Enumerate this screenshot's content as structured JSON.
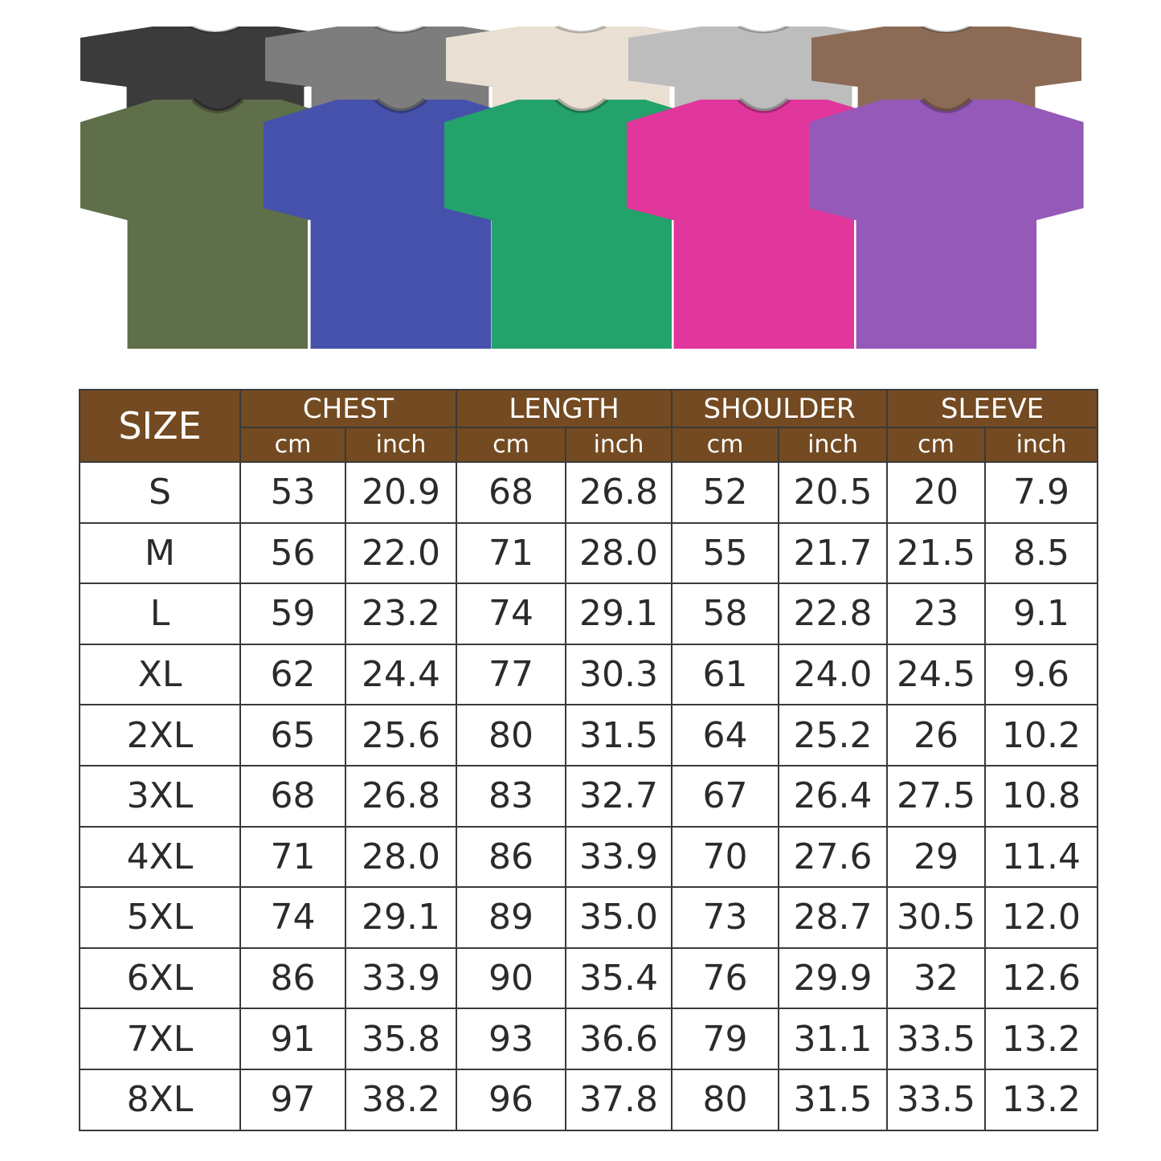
{
  "product_colors": {
    "back_row": [
      "#3b3b3b",
      "#7d7d7d",
      "#e9e0d3",
      "#bdbdbd",
      "#8c6b56"
    ],
    "front_row": [
      "#5f6f49",
      "#4651ab",
      "#24a26c",
      "#e1369b",
      "#9559b9"
    ]
  },
  "colors": {
    "header_bg": "#734a21",
    "border": "#3a3a3a"
  },
  "table": {
    "size_header": "SIZE",
    "groups": [
      "CHEST",
      "LENGTH",
      "SHOULDER",
      "SLEEVE"
    ],
    "units": [
      "cm",
      "inch"
    ],
    "rows": [
      [
        "S",
        "53",
        "20.9",
        "68",
        "26.8",
        "52",
        "20.5",
        "20",
        "7.9"
      ],
      [
        "M",
        "56",
        "22.0",
        "71",
        "28.0",
        "55",
        "21.7",
        "21.5",
        "8.5"
      ],
      [
        "L",
        "59",
        "23.2",
        "74",
        "29.1",
        "58",
        "22.8",
        "23",
        "9.1"
      ],
      [
        "XL",
        "62",
        "24.4",
        "77",
        "30.3",
        "61",
        "24.0",
        "24.5",
        "9.6"
      ],
      [
        "2XL",
        "65",
        "25.6",
        "80",
        "31.5",
        "64",
        "25.2",
        "26",
        "10.2"
      ],
      [
        "3XL",
        "68",
        "26.8",
        "83",
        "32.7",
        "67",
        "26.4",
        "27.5",
        "10.8"
      ],
      [
        "4XL",
        "71",
        "28.0",
        "86",
        "33.9",
        "70",
        "27.6",
        "29",
        "11.4"
      ],
      [
        "5XL",
        "74",
        "29.1",
        "89",
        "35.0",
        "73",
        "28.7",
        "30.5",
        "12.0"
      ],
      [
        "6XL",
        "86",
        "33.9",
        "90",
        "35.4",
        "76",
        "29.9",
        "32",
        "12.6"
      ],
      [
        "7XL",
        "91",
        "35.8",
        "93",
        "36.6",
        "79",
        "31.1",
        "33.5",
        "13.2"
      ],
      [
        "8XL",
        "97",
        "38.2",
        "96",
        "37.8",
        "80",
        "31.5",
        "33.5",
        "13.2"
      ]
    ]
  }
}
